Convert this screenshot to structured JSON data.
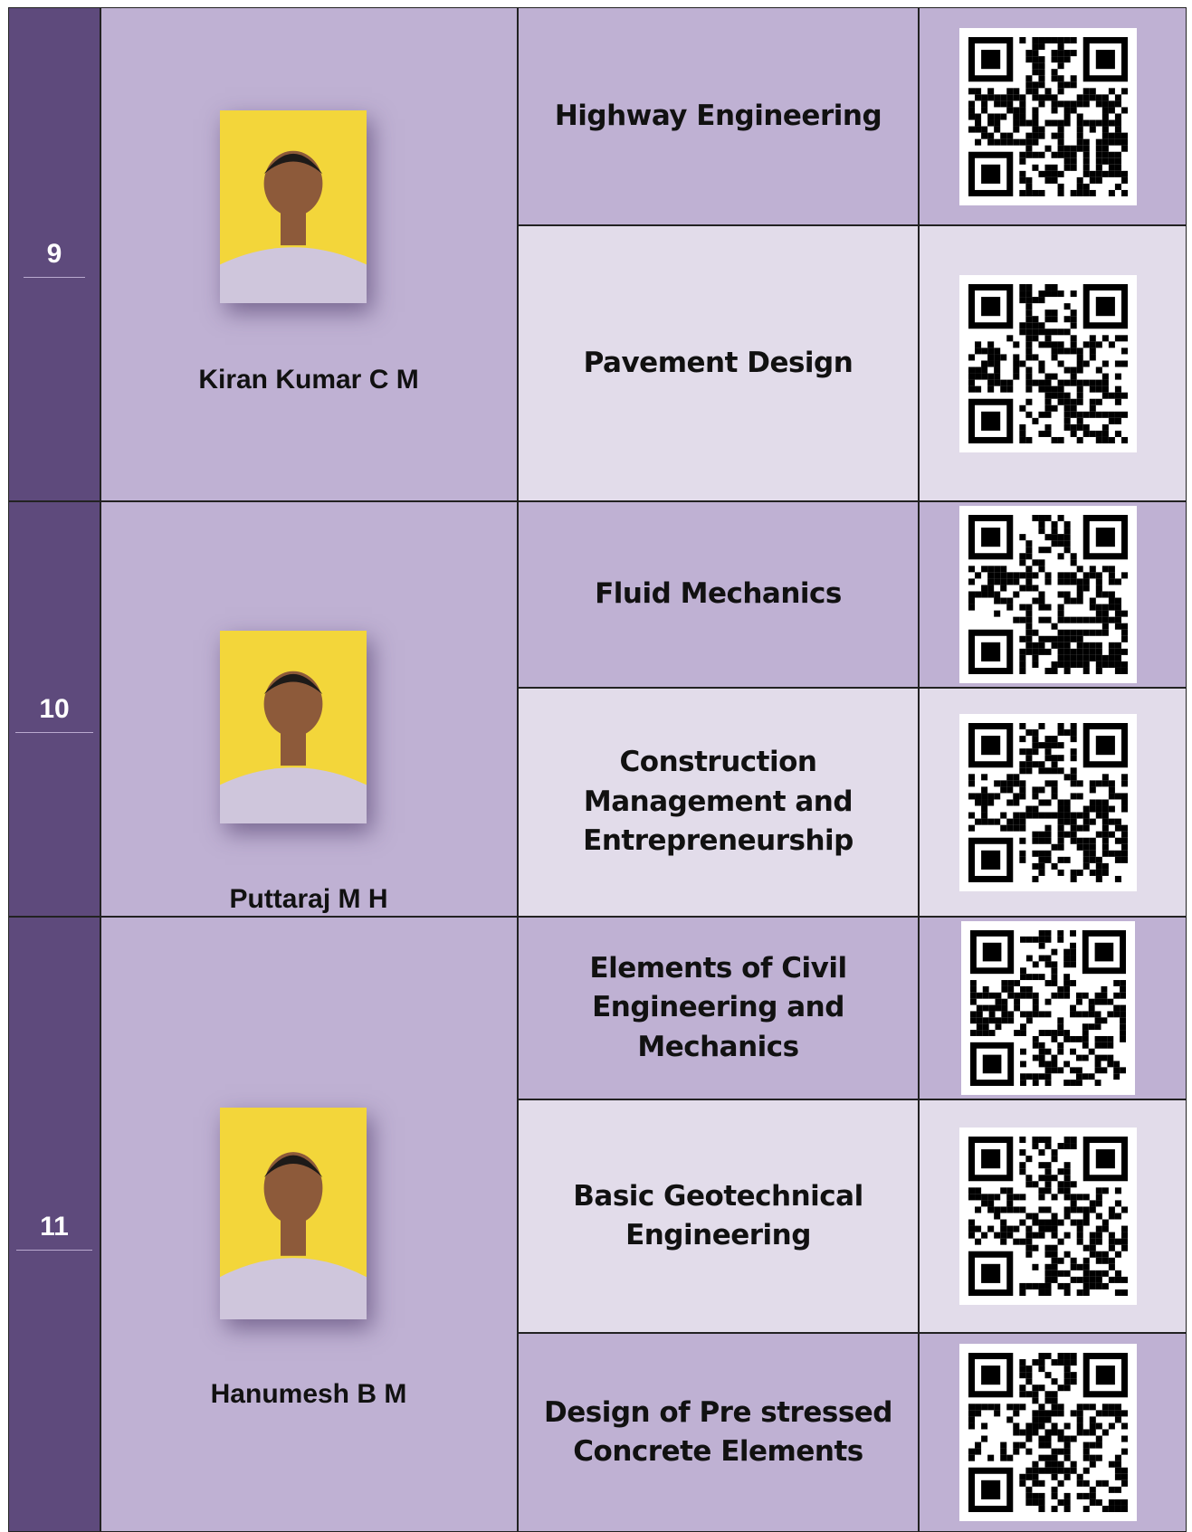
{
  "rows": [
    {
      "number": "9",
      "name": "Kiran Kumar C M",
      "subjects": [
        "Highway Engineering",
        "Pavement Design"
      ]
    },
    {
      "number": "10",
      "name": "Puttaraj M H",
      "subjects": [
        "Fluid Mechanics",
        "Construction Management and Entrepreneurship"
      ]
    },
    {
      "number": "11",
      "name": "Hanumesh B M",
      "subjects": [
        "Elements of Civil Engineering and Mechanics",
        "Basic Geotechnical Engineering",
        "Design of Pre stressed Concrete Elements"
      ]
    }
  ]
}
